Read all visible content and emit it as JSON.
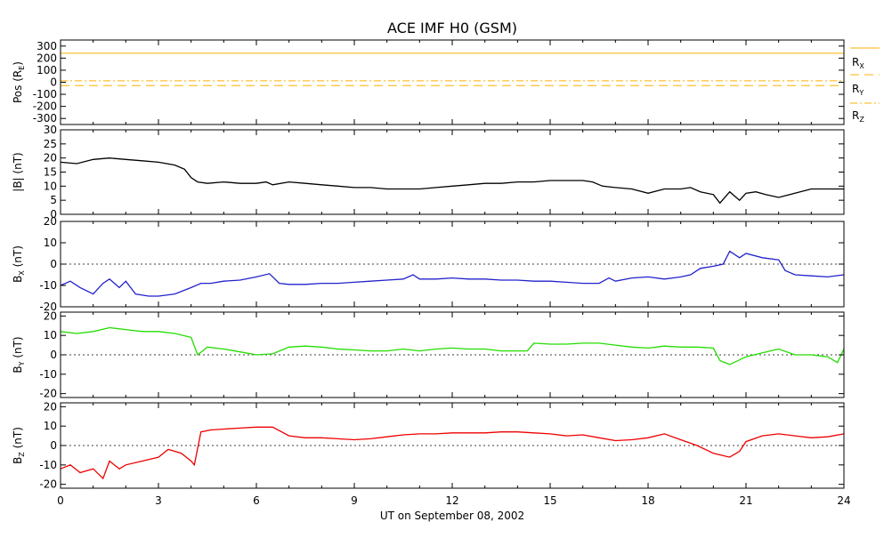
{
  "chart_data": {
    "type": "line",
    "title": "ACE IMF H0 (GSM)",
    "xlabel": "UT on September 08, 2002",
    "xlim": [
      0,
      24
    ],
    "x_ticks": [
      "0",
      "3",
      "6",
      "9",
      "12",
      "15",
      "18",
      "21",
      "24"
    ],
    "panels": [
      {
        "id": "pos",
        "ylabel": "Pos (R",
        "ylabel_sub": "E",
        "ylabel_tail": ")",
        "ylim": [
          -350,
          350
        ],
        "y_ticks": [
          300,
          200,
          100,
          0,
          -100,
          -200,
          -300
        ],
        "series": [
          {
            "name": "R",
            "sub": "X",
            "color": "#ffb000",
            "style": "solid",
            "points": [
              [
                0,
                240
              ],
              [
                24,
                240
              ]
            ]
          },
          {
            "name": "R",
            "sub": "Y",
            "color": "#ffb000",
            "style": "dashed",
            "points": [
              [
                0,
                -28
              ],
              [
                24,
                -28
              ]
            ]
          },
          {
            "name": "R",
            "sub": "Z",
            "color": "#ffb000",
            "style": "dashdot",
            "points": [
              [
                0,
                12
              ],
              [
                24,
                12
              ]
            ]
          }
        ]
      },
      {
        "id": "bmag",
        "ylabel": "|B| (nT)",
        "ylim": [
          0,
          30
        ],
        "y_ticks": [
          30,
          25,
          20,
          15,
          10,
          5,
          0
        ],
        "series": [
          {
            "color": "#000000",
            "points": [
              [
                0,
                18.5
              ],
              [
                0.5,
                18
              ],
              [
                1,
                19.5
              ],
              [
                1.5,
                20
              ],
              [
                2,
                19.5
              ],
              [
                2.5,
                19
              ],
              [
                3,
                18.5
              ],
              [
                3.5,
                17.5
              ],
              [
                3.8,
                16
              ],
              [
                4,
                13
              ],
              [
                4.2,
                11.5
              ],
              [
                4.5,
                11
              ],
              [
                5,
                11.5
              ],
              [
                5.5,
                11
              ],
              [
                6,
                11
              ],
              [
                6.3,
                11.5
              ],
              [
                6.5,
                10.5
              ],
              [
                7,
                11.5
              ],
              [
                7.5,
                11
              ],
              [
                8,
                10.5
              ],
              [
                8.5,
                10
              ],
              [
                9,
                9.5
              ],
              [
                9.5,
                9.5
              ],
              [
                10,
                9
              ],
              [
                10.5,
                9
              ],
              [
                11,
                9
              ],
              [
                11.5,
                9.5
              ],
              [
                12,
                10
              ],
              [
                12.5,
                10.5
              ],
              [
                13,
                11
              ],
              [
                13.5,
                11
              ],
              [
                14,
                11.5
              ],
              [
                14.5,
                11.5
              ],
              [
                15,
                12
              ],
              [
                15.5,
                12
              ],
              [
                16,
                12
              ],
              [
                16.3,
                11.5
              ],
              [
                16.6,
                10
              ],
              [
                17,
                9.5
              ],
              [
                17.5,
                9
              ],
              [
                18,
                7.5
              ],
              [
                18.5,
                9
              ],
              [
                19,
                9
              ],
              [
                19.3,
                9.5
              ],
              [
                19.6,
                8
              ],
              [
                20,
                7
              ],
              [
                20.2,
                4
              ],
              [
                20.5,
                8
              ],
              [
                20.8,
                5
              ],
              [
                21,
                7.5
              ],
              [
                21.3,
                8
              ],
              [
                21.6,
                7
              ],
              [
                22,
                6
              ],
              [
                22.5,
                7.5
              ],
              [
                23,
                9
              ],
              [
                23.5,
                9
              ],
              [
                24,
                9
              ]
            ]
          }
        ]
      },
      {
        "id": "bx",
        "ylabel": "B",
        "ylabel_sub": "X",
        "ylabel_tail": " (nT)",
        "ylim": [
          -20,
          20
        ],
        "y_ticks": [
          20,
          10,
          0,
          -10,
          -20
        ],
        "zero_line": true,
        "series": [
          {
            "color": "#2222cc",
            "points": [
              [
                0,
                -10
              ],
              [
                0.3,
                -8
              ],
              [
                0.6,
                -11
              ],
              [
                1,
                -14
              ],
              [
                1.3,
                -9
              ],
              [
                1.5,
                -7
              ],
              [
                1.8,
                -11
              ],
              [
                2,
                -8
              ],
              [
                2.3,
                -14
              ],
              [
                2.7,
                -15
              ],
              [
                3,
                -15
              ],
              [
                3.5,
                -14
              ],
              [
                4,
                -11
              ],
              [
                4.3,
                -9
              ],
              [
                4.6,
                -9
              ],
              [
                5,
                -8
              ],
              [
                5.5,
                -7.5
              ],
              [
                6,
                -6
              ],
              [
                6.4,
                -4.5
              ],
              [
                6.7,
                -9
              ],
              [
                7,
                -9.5
              ],
              [
                7.5,
                -9.5
              ],
              [
                8,
                -9
              ],
              [
                8.5,
                -9
              ],
              [
                9,
                -8.5
              ],
              [
                9.5,
                -8
              ],
              [
                10,
                -7.5
              ],
              [
                10.5,
                -7
              ],
              [
                10.8,
                -5
              ],
              [
                11,
                -7
              ],
              [
                11.5,
                -7
              ],
              [
                12,
                -6.5
              ],
              [
                12.5,
                -7
              ],
              [
                13,
                -7
              ],
              [
                13.5,
                -7.5
              ],
              [
                14,
                -7.5
              ],
              [
                14.5,
                -8
              ],
              [
                15,
                -8
              ],
              [
                15.5,
                -8.5
              ],
              [
                16,
                -9
              ],
              [
                16.5,
                -9
              ],
              [
                16.8,
                -6.5
              ],
              [
                17,
                -8
              ],
              [
                17.5,
                -6.5
              ],
              [
                18,
                -6
              ],
              [
                18.5,
                -7
              ],
              [
                19,
                -6
              ],
              [
                19.3,
                -5
              ],
              [
                19.6,
                -2
              ],
              [
                20,
                -1
              ],
              [
                20.3,
                0
              ],
              [
                20.5,
                6
              ],
              [
                20.8,
                3
              ],
              [
                21,
                5
              ],
              [
                21.5,
                3
              ],
              [
                22,
                2
              ],
              [
                22.2,
                -3
              ],
              [
                22.5,
                -5
              ],
              [
                23,
                -5.5
              ],
              [
                23.5,
                -6
              ],
              [
                24,
                -5
              ]
            ]
          }
        ]
      },
      {
        "id": "by",
        "ylabel": "B",
        "ylabel_sub": "Y",
        "ylabel_tail": " (nT)",
        "ylim": [
          -22,
          22
        ],
        "y_ticks": [
          20,
          10,
          0,
          -10,
          -20
        ],
        "zero_line": true,
        "series": [
          {
            "color": "#22dd00",
            "points": [
              [
                0,
                12
              ],
              [
                0.5,
                11
              ],
              [
                1,
                12
              ],
              [
                1.5,
                14
              ],
              [
                2,
                13
              ],
              [
                2.5,
                12
              ],
              [
                3,
                12
              ],
              [
                3.5,
                11
              ],
              [
                4,
                9
              ],
              [
                4.2,
                0
              ],
              [
                4.5,
                4
              ],
              [
                5,
                3
              ],
              [
                5.5,
                1.5
              ],
              [
                6,
                0
              ],
              [
                6.5,
                0.5
              ],
              [
                7,
                4
              ],
              [
                7.5,
                4.5
              ],
              [
                8,
                4
              ],
              [
                8.5,
                3
              ],
              [
                9,
                2.5
              ],
              [
                9.5,
                2
              ],
              [
                10,
                2
              ],
              [
                10.5,
                3
              ],
              [
                11,
                2
              ],
              [
                11.5,
                3
              ],
              [
                12,
                3.5
              ],
              [
                12.5,
                3
              ],
              [
                13,
                3
              ],
              [
                13.5,
                2
              ],
              [
                14,
                2
              ],
              [
                14.3,
                2
              ],
              [
                14.5,
                6
              ],
              [
                15,
                5.5
              ],
              [
                15.5,
                5.5
              ],
              [
                16,
                6
              ],
              [
                16.5,
                6
              ],
              [
                17,
                5
              ],
              [
                17.5,
                4
              ],
              [
                18,
                3.5
              ],
              [
                18.5,
                4.5
              ],
              [
                19,
                4
              ],
              [
                19.5,
                4
              ],
              [
                20,
                3.5
              ],
              [
                20.2,
                -3
              ],
              [
                20.5,
                -5
              ],
              [
                21,
                -1
              ],
              [
                21.5,
                1
              ],
              [
                22,
                3
              ],
              [
                22.5,
                0
              ],
              [
                23,
                0
              ],
              [
                23.5,
                -1
              ],
              [
                23.8,
                -4
              ],
              [
                24,
                3
              ]
            ]
          }
        ]
      },
      {
        "id": "bz",
        "ylabel": "B",
        "ylabel_sub": "Z",
        "ylabel_tail": " (nT)",
        "ylim": [
          -22,
          22
        ],
        "y_ticks": [
          20,
          10,
          0,
          -10,
          -20
        ],
        "zero_line": true,
        "series": [
          {
            "color": "#ee0000",
            "points": [
              [
                0,
                -12
              ],
              [
                0.3,
                -10
              ],
              [
                0.6,
                -14
              ],
              [
                1,
                -12
              ],
              [
                1.3,
                -17
              ],
              [
                1.5,
                -8
              ],
              [
                1.8,
                -12
              ],
              [
                2,
                -10
              ],
              [
                2.5,
                -8
              ],
              [
                3,
                -6
              ],
              [
                3.3,
                -2
              ],
              [
                3.7,
                -4
              ],
              [
                4,
                -8
              ],
              [
                4.1,
                -10
              ],
              [
                4.3,
                7
              ],
              [
                4.6,
                8
              ],
              [
                5,
                8.5
              ],
              [
                5.5,
                9
              ],
              [
                6,
                9.5
              ],
              [
                6.5,
                9.5
              ],
              [
                7,
                5
              ],
              [
                7.5,
                4
              ],
              [
                8,
                4
              ],
              [
                8.5,
                3.5
              ],
              [
                9,
                3
              ],
              [
                9.5,
                3.5
              ],
              [
                10,
                4.5
              ],
              [
                10.5,
                5.5
              ],
              [
                11,
                6
              ],
              [
                11.5,
                6
              ],
              [
                12,
                6.5
              ],
              [
                12.5,
                6.5
              ],
              [
                13,
                6.5
              ],
              [
                13.5,
                7
              ],
              [
                14,
                7
              ],
              [
                14.5,
                6.5
              ],
              [
                15,
                6
              ],
              [
                15.5,
                5
              ],
              [
                16,
                5.5
              ],
              [
                16.5,
                4
              ],
              [
                17,
                2.5
              ],
              [
                17.5,
                3
              ],
              [
                18,
                4
              ],
              [
                18.5,
                6
              ],
              [
                19,
                3
              ],
              [
                19.5,
                0
              ],
              [
                20,
                -4
              ],
              [
                20.5,
                -6
              ],
              [
                20.8,
                -3
              ],
              [
                21,
                2
              ],
              [
                21.5,
                5
              ],
              [
                22,
                6
              ],
              [
                22.5,
                5
              ],
              [
                23,
                4
              ],
              [
                23.5,
                4.5
              ],
              [
                24,
                6
              ]
            ]
          }
        ]
      }
    ]
  }
}
